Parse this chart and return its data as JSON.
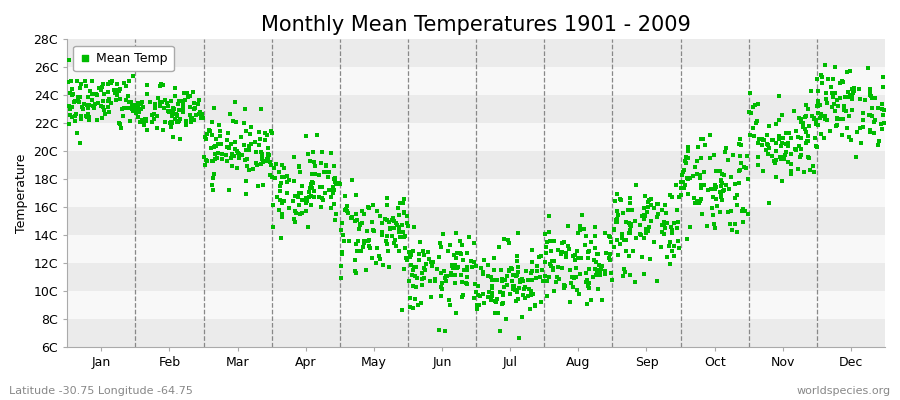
{
  "title": "Monthly Mean Temperatures 1901 - 2009",
  "ylabel": "Temperature",
  "xlabel_labels": [
    "Jan",
    "Feb",
    "Mar",
    "Apr",
    "May",
    "Jun",
    "Jul",
    "Aug",
    "Sep",
    "Oct",
    "Nov",
    "Dec"
  ],
  "ytick_labels": [
    "6C",
    "8C",
    "10C",
    "12C",
    "14C",
    "16C",
    "18C",
    "20C",
    "22C",
    "24C",
    "26C",
    "28C"
  ],
  "ytick_values": [
    6,
    8,
    10,
    12,
    14,
    16,
    18,
    20,
    22,
    24,
    26,
    28
  ],
  "ylim": [
    6,
    28
  ],
  "dot_color": "#00bb00",
  "dot_size": 3.5,
  "background_color": "#ffffff",
  "band_colors": [
    "#ebebeb",
    "#f8f8f8"
  ],
  "legend_label": "Mean Temp",
  "subtitle": "Latitude -30.75 Longitude -64.75",
  "watermark": "worldspecies.org",
  "title_fontsize": 15,
  "label_fontsize": 9,
  "monthly_means": [
    23.5,
    22.8,
    20.2,
    17.5,
    14.2,
    11.2,
    10.7,
    11.8,
    14.5,
    17.8,
    20.8,
    23.2
  ],
  "monthly_stds": [
    1.1,
    0.9,
    1.2,
    1.4,
    1.6,
    1.4,
    1.4,
    1.4,
    1.7,
    1.9,
    1.6,
    1.4
  ],
  "n_years": 109,
  "seed": 42
}
